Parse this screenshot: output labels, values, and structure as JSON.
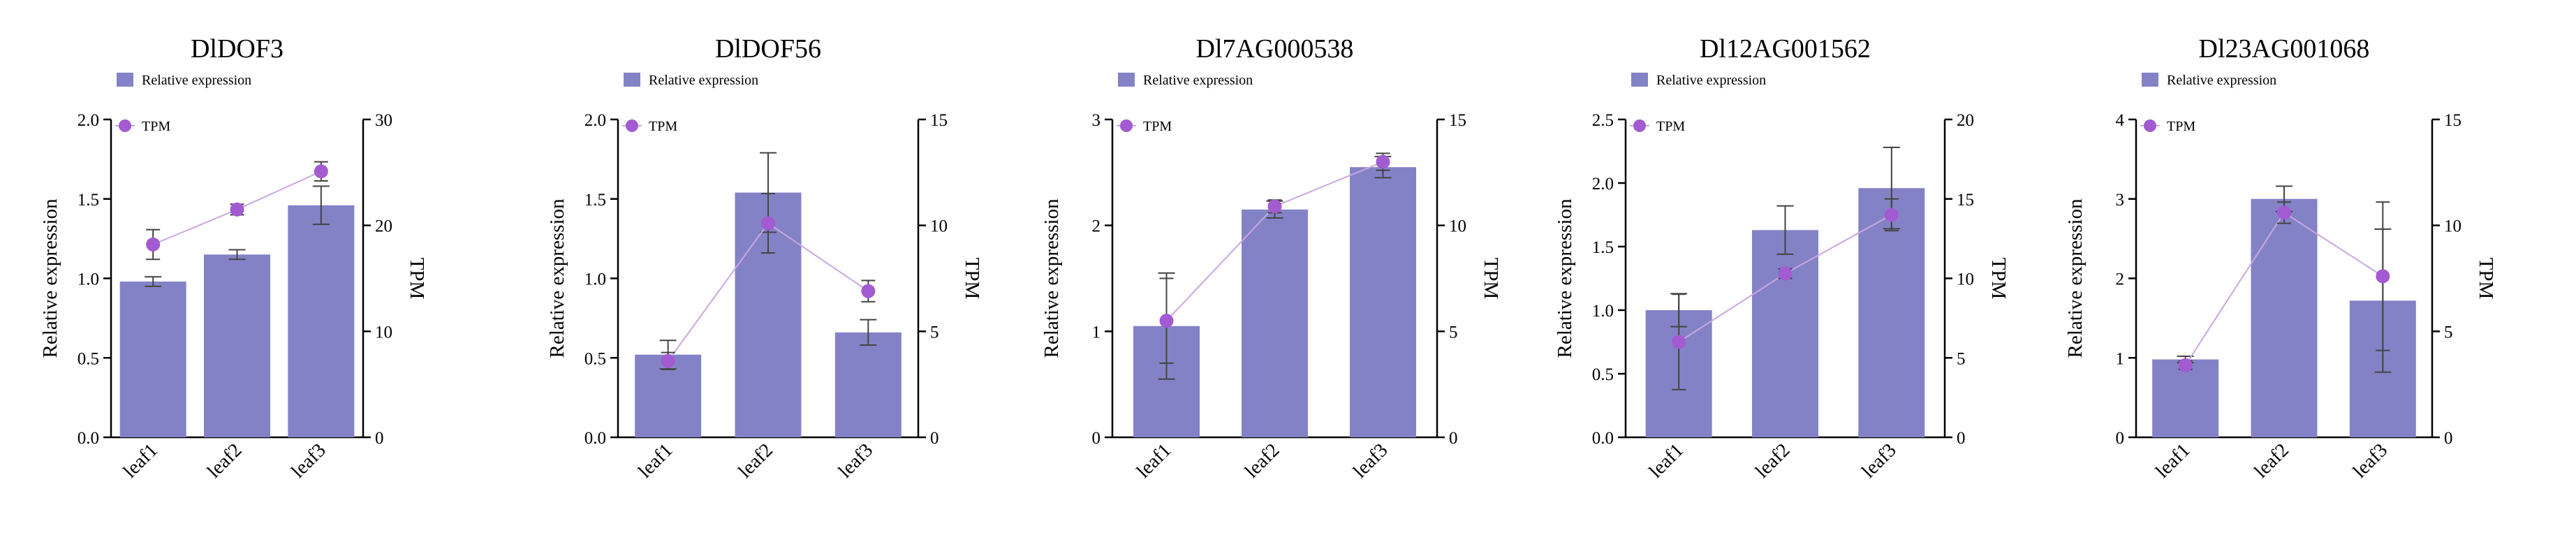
{
  "colors": {
    "bar": "#8482c6",
    "point": "#a25bd1",
    "line": "#c8a8e0",
    "error": "#444444"
  },
  "chart_data": [
    {
      "type": "bar",
      "title": "DlDOF3",
      "categories": [
        "leaf1",
        "leaf2",
        "leaf3"
      ],
      "ylabel": "Relative expression",
      "y2label": "TPM",
      "ylim": [
        0,
        2.0
      ],
      "yticks": [
        "0.0",
        "0.5",
        "1.0",
        "1.5",
        "2.0"
      ],
      "yticks_values": [
        0,
        0.5,
        1.0,
        1.5,
        2.0
      ],
      "y2lim": [
        0,
        30
      ],
      "y2ticks": [
        "0",
        "10",
        "20",
        "30"
      ],
      "y2ticks_values": [
        0,
        10,
        20,
        30
      ],
      "legend": [
        "Relative expression",
        "TPM"
      ],
      "series": [
        {
          "name": "Relative expression",
          "values": [
            0.98,
            1.15,
            1.46
          ],
          "errors": [
            0.03,
            0.03,
            0.12
          ]
        },
        {
          "name": "TPM",
          "values": [
            18.2,
            21.5,
            25.1
          ],
          "errors": [
            1.4,
            0.5,
            0.9
          ]
        }
      ]
    },
    {
      "type": "bar",
      "title": "DlDOF56",
      "categories": [
        "leaf1",
        "leaf2",
        "leaf3"
      ],
      "ylabel": "Relative expression",
      "y2label": "TPM",
      "ylim": [
        0,
        2.0
      ],
      "yticks": [
        "0.0",
        "0.5",
        "1.0",
        "1.5",
        "2.0"
      ],
      "yticks_values": [
        0,
        0.5,
        1.0,
        1.5,
        2.0
      ],
      "y2lim": [
        0,
        15
      ],
      "y2ticks": [
        "0",
        "5",
        "10",
        "15"
      ],
      "y2ticks_values": [
        0,
        5,
        10,
        15
      ],
      "legend": [
        "Relative expression",
        "TPM"
      ],
      "series": [
        {
          "name": "Relative expression",
          "values": [
            0.52,
            1.54,
            0.66
          ],
          "errors": [
            0.09,
            0.25,
            0.08
          ]
        },
        {
          "name": "TPM",
          "values": [
            3.6,
            10.1,
            6.9
          ],
          "errors": [
            0.4,
            1.4,
            0.5
          ]
        }
      ]
    },
    {
      "type": "bar",
      "title": "Dl7AG000538",
      "categories": [
        "leaf1",
        "leaf2",
        "leaf3"
      ],
      "ylabel": "Relative expression",
      "y2label": "TPM",
      "ylim": [
        0,
        3
      ],
      "yticks": [
        "0",
        "1",
        "2",
        "3"
      ],
      "yticks_values": [
        0,
        1,
        2,
        3
      ],
      "y2lim": [
        0,
        15
      ],
      "y2ticks": [
        "0",
        "5",
        "10",
        "15"
      ],
      "y2ticks_values": [
        0,
        5,
        10,
        15
      ],
      "legend": [
        "Relative expression",
        "TPM"
      ],
      "series": [
        {
          "name": "Relative expression",
          "values": [
            1.05,
            2.15,
            2.55
          ],
          "errors": [
            0.5,
            0.08,
            0.1
          ]
        },
        {
          "name": "TPM",
          "values": [
            5.5,
            10.9,
            13.0
          ],
          "errors": [
            2.0,
            0.3,
            0.4
          ]
        }
      ]
    },
    {
      "type": "bar",
      "title": "Dl12AG001562",
      "categories": [
        "leaf1",
        "leaf2",
        "leaf3"
      ],
      "ylabel": "Relative expression",
      "y2label": "TPM",
      "ylim": [
        0,
        2.5
      ],
      "yticks": [
        "0.0",
        "0.5",
        "1.0",
        "1.5",
        "2.0",
        "2.5"
      ],
      "yticks_values": [
        0,
        0.5,
        1.0,
        1.5,
        2.0,
        2.5
      ],
      "y2lim": [
        0,
        20
      ],
      "y2ticks": [
        "0",
        "5",
        "10",
        "15",
        "20"
      ],
      "y2ticks_values": [
        0,
        5,
        10,
        15,
        20
      ],
      "legend": [
        "Relative expression",
        "TPM"
      ],
      "series": [
        {
          "name": "Relative expression",
          "values": [
            1.0,
            1.63,
            1.96
          ],
          "errors": [
            0.13,
            0.19,
            0.32
          ]
        },
        {
          "name": "TPM",
          "values": [
            6.0,
            10.3,
            14.0
          ],
          "errors": [
            3.0,
            0.3,
            1.0
          ]
        }
      ]
    },
    {
      "type": "bar",
      "title": "Dl23AG001068",
      "categories": [
        "leaf1",
        "leaf2",
        "leaf3"
      ],
      "ylabel": "Relative expression",
      "y2label": "TPM",
      "ylim": [
        0,
        4
      ],
      "yticks": [
        "0",
        "1",
        "2",
        "3",
        "4"
      ],
      "yticks_values": [
        0,
        1,
        2,
        3,
        4
      ],
      "y2lim": [
        0,
        15
      ],
      "y2ticks": [
        "0",
        "5",
        "10",
        "15"
      ],
      "y2ticks_values": [
        0,
        5,
        10,
        15
      ],
      "legend": [
        "Relative expression",
        "TPM"
      ],
      "series": [
        {
          "name": "Relative expression",
          "values": [
            0.98,
            3.0,
            1.72
          ],
          "errors": [
            0.04,
            0.16,
            0.9
          ]
        },
        {
          "name": "TPM",
          "values": [
            3.4,
            10.6,
            7.6
          ],
          "errors": [
            0.2,
            0.5,
            3.5
          ]
        }
      ]
    }
  ]
}
